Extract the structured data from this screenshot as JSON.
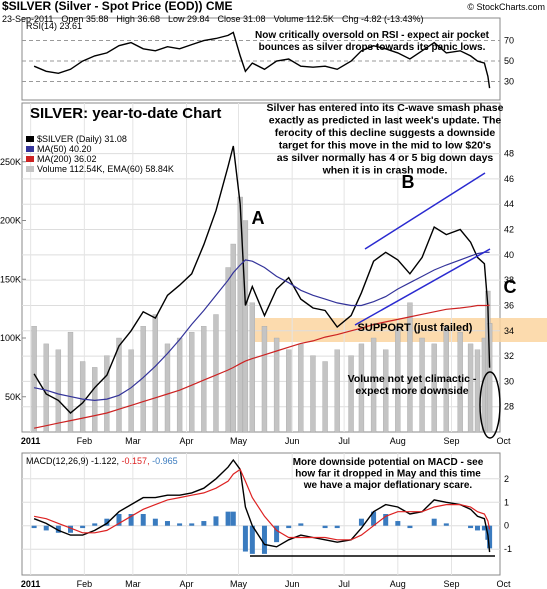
{
  "header": {
    "title": "$SILVER (Silver - Spot Price (EOD)) CME",
    "credit": "© StockCharts.com",
    "info": [
      "23-Sep-2011",
      "Open 35.88",
      "High 36.68",
      "Low 29.84",
      "Close 31.08",
      "Volume 112.5K",
      "Chg -4.82 (-13.43%)"
    ]
  },
  "chart_data": [
    {
      "type": "line",
      "ylim": [
        12,
        92
      ],
      "yticks": [
        70,
        50,
        30
      ],
      "grid": true,
      "annotations": [
        [
          "Now critically oversold on RSI - expect air pocket",
          "bounces as silver drops towards its panic lows."
        ]
      ],
      "series": [
        {
          "name": "RSI(14) 23.61",
          "color": "#000000",
          "values": [
            45,
            40,
            38,
            42,
            50,
            55,
            58,
            65,
            68,
            62,
            60,
            64,
            62,
            66,
            70,
            72,
            75,
            78,
            55,
            40,
            48,
            42,
            50,
            52,
            45,
            44,
            45,
            42,
            50,
            60,
            65,
            62,
            58,
            52,
            60,
            68,
            58,
            60,
            55,
            50,
            48,
            35,
            23.61
          ]
        }
      ]
    },
    {
      "type": "line",
      "ylim": [
        26,
        52
      ],
      "yticks": [
        28,
        30,
        32,
        34,
        36,
        38,
        40,
        42,
        44,
        46,
        48
      ],
      "grid": true,
      "xlim": [
        -5,
        271
      ],
      "x": [
        2,
        9,
        16,
        23,
        30,
        37,
        44,
        51,
        58,
        65,
        72,
        79,
        86,
        93,
        100,
        107,
        114,
        117,
        121,
        124,
        128,
        135,
        142,
        149,
        156,
        163,
        170,
        177,
        185,
        191,
        198,
        205,
        212,
        219,
        226,
        233,
        240,
        248,
        254,
        258,
        262,
        264,
        265
      ],
      "xticks": [
        {
          "value": 0,
          "label": "2011"
        },
        {
          "value": 31,
          "label": "Feb"
        },
        {
          "value": 59,
          "label": "Mar"
        },
        {
          "value": 90,
          "label": "Apr"
        },
        {
          "value": 120,
          "label": "May"
        },
        {
          "value": 151,
          "label": "Jun"
        },
        {
          "value": 181,
          "label": "Jul"
        },
        {
          "value": 212,
          "label": "Aug"
        },
        {
          "value": 243,
          "label": "Sep"
        },
        {
          "value": 273,
          "label": "Oct"
        }
      ],
      "y2lim": [
        20000,
        300000
      ],
      "y2ticks": [
        {
          "value": 50000,
          "label": "50K"
        },
        {
          "value": 100000,
          "label": "100K"
        },
        {
          "value": 150000,
          "label": "150K"
        },
        {
          "value": 200000,
          "label": "200K"
        },
        {
          "value": 250000,
          "label": "250K"
        }
      ],
      "annotations": [
        [
          "SILVER: year-to-date Chart"
        ],
        [
          "Silver has entered into its C-wave smash phase",
          "exactly as predicted in last week's update. The",
          "ferocity of this decline suggests a downside",
          "target for this move in the mid to low $20's",
          "as silver normally has 4 or 5 big down days",
          "when it is in crash mode."
        ],
        [
          "A"
        ],
        [
          "B"
        ],
        [
          "C"
        ],
        [
          "SUPPORT (just failed)"
        ],
        [
          "Volume not yet climactic -",
          "expect more downside"
        ]
      ],
      "series": [
        {
          "name": "$SILVER (Daily) 31.08",
          "color": "#000000",
          "values": [
            30.6,
            29.0,
            28.5,
            27.5,
            28.3,
            29.5,
            30.5,
            32.8,
            34.0,
            35.5,
            35.0,
            36.8,
            37.6,
            38.5,
            40.8,
            43.5,
            47.0,
            48.6,
            44.0,
            36.0,
            37.5,
            35.2,
            37.3,
            38.2,
            36.5,
            35.8,
            35.6,
            34.3,
            35.2,
            37.0,
            39.5,
            40.2,
            39.6,
            38.5,
            39.8,
            42.2,
            41.6,
            42.0,
            41.0,
            39.8,
            39.3,
            35.9,
            31.08
          ]
        },
        {
          "name": "MA(50) 40.20",
          "color": "#33339a",
          "values": [
            29.5,
            29.3,
            29.0,
            28.8,
            28.6,
            28.5,
            28.6,
            28.9,
            29.5,
            30.3,
            31.2,
            32.2,
            33.3,
            34.5,
            35.6,
            36.8,
            38.0,
            38.6,
            39.2,
            39.6,
            39.5,
            39.0,
            38.3,
            37.8,
            37.2,
            36.8,
            36.5,
            36.2,
            36.0,
            36.0,
            36.3,
            36.7,
            37.3,
            37.8,
            38.3,
            38.8,
            39.2,
            39.6,
            39.9,
            40.1,
            40.2,
            40.2,
            40.2
          ]
        },
        {
          "name": "MA(200) 36.02",
          "color": "#cc2222",
          "values": [
            26.3,
            26.5,
            26.7,
            26.9,
            27.1,
            27.3,
            27.5,
            27.8,
            28.1,
            28.4,
            28.7,
            29.0,
            29.3,
            29.7,
            30.1,
            30.5,
            30.9,
            31.1,
            31.4,
            31.6,
            31.8,
            32.1,
            32.4,
            32.7,
            33.0,
            33.2,
            33.5,
            33.7,
            34.0,
            34.2,
            34.5,
            34.7,
            34.9,
            35.1,
            35.3,
            35.5,
            35.7,
            35.8,
            35.9,
            36.0,
            36.0,
            36.0,
            36.02
          ]
        },
        {
          "name": "Volume 112.54K, EMA(60) 58.84K",
          "color": "#c4c4c4",
          "axis": "y2",
          "values": [
            110000,
            95000,
            90000,
            105000,
            80000,
            75000,
            85000,
            100000,
            90000,
            110000,
            120000,
            95000,
            100000,
            105000,
            110000,
            120000,
            160000,
            180000,
            220000,
            200000,
            130000,
            110000,
            100000,
            90000,
            95000,
            85000,
            80000,
            90000,
            85000,
            95000,
            100000,
            90000,
            110000,
            130000,
            100000,
            95000,
            110000,
            105000,
            95000,
            90000,
            100000,
            140000,
            112540
          ]
        }
      ]
    },
    {
      "type": "line",
      "ylim": [
        -2.1,
        3.1
      ],
      "yticks": [
        2,
        1,
        0,
        -1
      ],
      "grid": true,
      "xticks": [
        {
          "value": 0,
          "label": "2011"
        },
        {
          "value": 31,
          "label": "Feb"
        },
        {
          "value": 59,
          "label": "Mar"
        },
        {
          "value": 90,
          "label": "Apr"
        },
        {
          "value": 120,
          "label": "May"
        },
        {
          "value": 151,
          "label": "Jun"
        },
        {
          "value": 181,
          "label": "Jul"
        },
        {
          "value": 212,
          "label": "Aug"
        },
        {
          "value": 243,
          "label": "Sep"
        },
        {
          "value": 273,
          "label": "Oct"
        }
      ],
      "annotations": [
        [
          "More downside potential on MACD - see",
          "how far it dropped in May and this time",
          "we have a major deflationary scare."
        ]
      ],
      "series": [
        {
          "name": "MACD(12,26,9) -1.122,",
          "color": "#000000",
          "values": [
            0.3,
            0.1,
            -0.2,
            -0.4,
            -0.4,
            -0.2,
            0.1,
            0.6,
            0.9,
            1.2,
            1.2,
            1.3,
            1.3,
            1.4,
            1.6,
            2.0,
            2.5,
            2.8,
            2.4,
            0.8,
            0,
            -0.8,
            -0.9,
            -0.6,
            -0.4,
            -0.5,
            -0.6,
            -0.7,
            -0.6,
            -0.1,
            0.6,
            0.9,
            0.8,
            0.5,
            0.6,
            1.1,
            1.0,
            0.9,
            0.7,
            0.4,
            0.3,
            -0.4,
            -1.122
          ]
        },
        {
          "name": " -0.157,",
          "color": "#dd2222",
          "values": [
            0.4,
            0.3,
            0.1,
            -0.1,
            -0.3,
            -0.3,
            -0.2,
            0.1,
            0.4,
            0.7,
            0.9,
            1.1,
            1.2,
            1.3,
            1.4,
            1.6,
            1.9,
            2.2,
            2.4,
            1.9,
            1.2,
            0.4,
            -0.2,
            -0.5,
            -0.5,
            -0.5,
            -0.5,
            -0.6,
            -0.6,
            -0.4,
            0,
            0.4,
            0.6,
            0.6,
            0.6,
            0.8,
            0.9,
            0.9,
            0.8,
            0.6,
            0.5,
            0.2,
            -0.157
          ]
        },
        {
          "name": " -0.965",
          "color": "#3a7bbf",
          "style": "bar",
          "values": [
            -0.1,
            -0.2,
            -0.3,
            -0.3,
            -0.1,
            0.1,
            0.3,
            0.5,
            0.5,
            0.5,
            0.3,
            0.2,
            0.1,
            0.1,
            0.2,
            0.4,
            0.6,
            0.6,
            0,
            -1.1,
            -1.2,
            -1.2,
            -0.7,
            -0.1,
            0.1,
            0,
            -0.1,
            -0.1,
            0,
            0.3,
            0.6,
            0.5,
            0.2,
            -0.1,
            0,
            0.3,
            0.1,
            0,
            -0.1,
            -0.2,
            -0.2,
            -0.6,
            -0.965
          ]
        }
      ]
    }
  ]
}
